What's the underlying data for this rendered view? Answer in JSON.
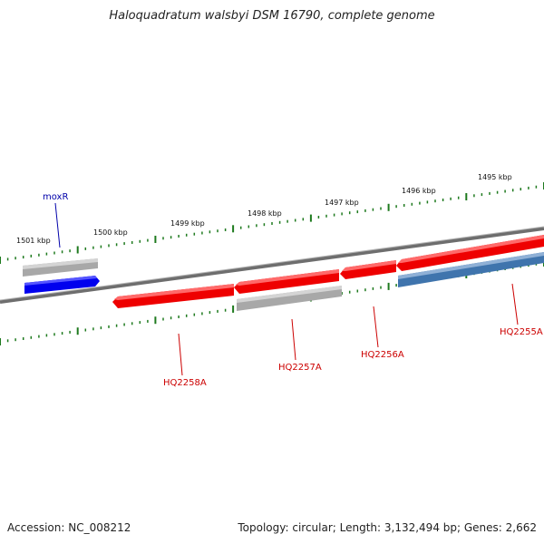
{
  "title": "Haloquadratum walsbyi DSM 16790, complete genome",
  "footer": {
    "accession": "Accession: NC_008212",
    "summary": "Topology: circular; Length: 3,132,494 bp; Genes: 2,662"
  },
  "colors": {
    "backbone": "#808080",
    "tick": "#1e7a1e",
    "red_gene": "#ee0000",
    "gray_gene": "#a8a8a8",
    "blue_gene": "#0000ee",
    "steel_gene": "#3f74ad",
    "label_red": "#cc0000",
    "label_blue": "#0000aa"
  },
  "scale_labels": [
    {
      "id": "kbp-1501",
      "text": "1501 kbp"
    },
    {
      "id": "kbp-1500",
      "text": "1500 kbp"
    },
    {
      "id": "kbp-1499",
      "text": "1499 kbp"
    },
    {
      "id": "kbp-1498",
      "text": "1498 kbp"
    },
    {
      "id": "kbp-1497",
      "text": "1497 kbp"
    },
    {
      "id": "kbp-1496",
      "text": "1496 kbp"
    },
    {
      "id": "kbp-1495",
      "text": "1495 kbp"
    }
  ],
  "gene_labels": [
    {
      "id": "moxR",
      "text": "moxR"
    },
    {
      "id": "HQ2258A",
      "text": "HQ2258A"
    },
    {
      "id": "HQ2257A",
      "text": "HQ2257A"
    },
    {
      "id": "HQ2256A",
      "text": "HQ2256A"
    },
    {
      "id": "HQ2255A",
      "text": "HQ2255A"
    }
  ]
}
